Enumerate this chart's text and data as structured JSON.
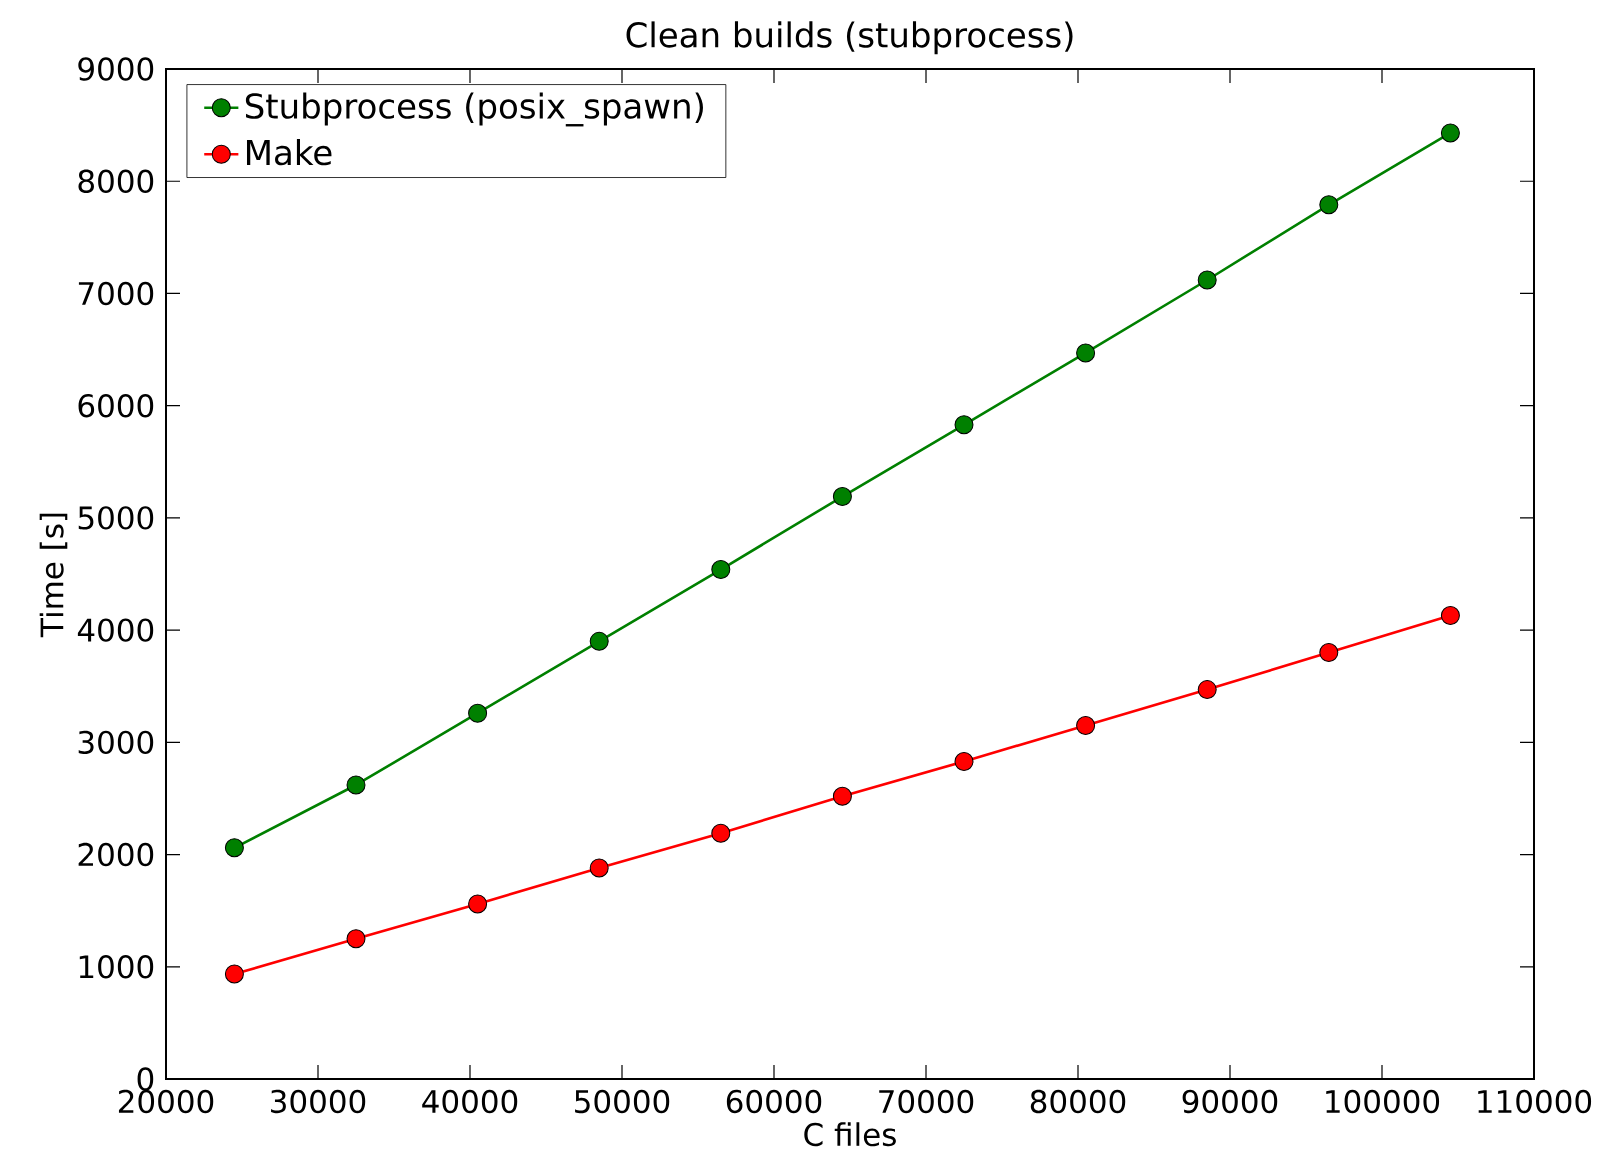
{
  "chart_data": {
    "type": "line",
    "title": "Clean builds (stubprocess)",
    "xlabel": "C files",
    "ylabel": "Time [s]",
    "x": [
      24500,
      32500,
      40500,
      48500,
      56500,
      64500,
      72500,
      80500,
      88500,
      96500,
      104500
    ],
    "series": [
      {
        "name": "Stubprocess (posix_spawn)",
        "color": "#008000",
        "values": [
          2060,
          2620,
          3260,
          3900,
          4540,
          5190,
          5830,
          6470,
          7120,
          7790,
          8430
        ]
      },
      {
        "name": "Make",
        "color": "#ff0000",
        "values": [
          935,
          1250,
          1560,
          1880,
          2190,
          2520,
          2830,
          3150,
          3470,
          3800,
          4130
        ]
      }
    ],
    "xlim": [
      20000,
      110000
    ],
    "xticks": [
      20000,
      30000,
      40000,
      50000,
      60000,
      70000,
      80000,
      90000,
      100000,
      110000
    ],
    "ylim": [
      0,
      9000
    ],
    "yticks": [
      0,
      1000,
      2000,
      3000,
      4000,
      5000,
      6000,
      7000,
      8000,
      9000
    ],
    "grid": false,
    "legend": "top left",
    "marker": "circle",
    "line_style": "solid"
  }
}
